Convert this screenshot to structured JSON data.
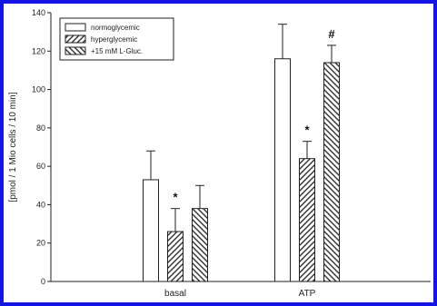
{
  "chart_data": {
    "type": "bar",
    "title": "",
    "xlabel": "",
    "ylabel": "[pmol / 1 Mio cells / 10 min]",
    "ylim": [
      0,
      140
    ],
    "yticks": [
      0,
      20,
      40,
      60,
      80,
      100,
      120,
      140
    ],
    "grid": false,
    "legend_position": "top-left",
    "categories": [
      "basal",
      "ATP"
    ],
    "series": [
      {
        "name": "normoglycemic",
        "pattern": "none",
        "values": [
          53,
          116
        ],
        "errors": [
          15,
          18
        ]
      },
      {
        "name": "hyperglycemic",
        "pattern": "diagonal-right",
        "values": [
          26,
          64
        ],
        "errors": [
          12,
          9
        ]
      },
      {
        "name": "+15 mM L-Gluc.",
        "pattern": "diagonal-left",
        "values": [
          38,
          114
        ],
        "errors": [
          12,
          9
        ]
      }
    ],
    "annotations": [
      {
        "category": "basal",
        "series": "hyperglycemic",
        "text": "*"
      },
      {
        "category": "ATP",
        "series": "hyperglycemic",
        "text": "*"
      },
      {
        "category": "ATP",
        "series": "+15 mM L-Gluc.",
        "text": "#"
      }
    ]
  },
  "colors": {
    "border": "#1414e6",
    "axis": "#222222",
    "bar_fill": "#ffffff",
    "hatch": "#333333"
  }
}
